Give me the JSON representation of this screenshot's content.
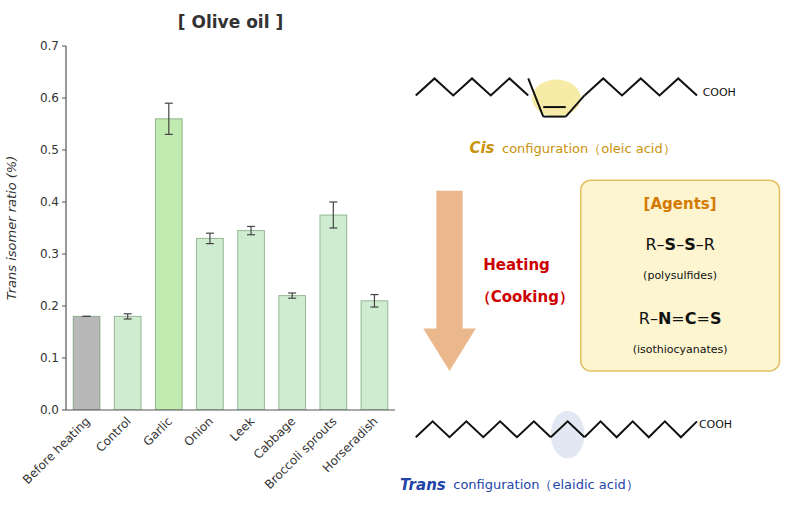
{
  "chart_data": {
    "type": "bar",
    "title": "[ Olive oil ]",
    "ylabel": "Trans isomer ratio (%)",
    "categories": [
      "Before heating",
      "Control",
      "Garlic",
      "Onion",
      "Leek",
      "Cabbage",
      "Broccoli sprouts",
      "Horseradish"
    ],
    "values": [
      0.18,
      0.18,
      0.56,
      0.33,
      0.345,
      0.22,
      0.375,
      0.21
    ],
    "errors": [
      0.0,
      0.005,
      0.03,
      0.01,
      0.008,
      0.005,
      0.025,
      0.012
    ],
    "colors": [
      "#b8b8b8",
      "#d0ecd0",
      "#c0eab0",
      "#d0ecd0",
      "#d0ecd0",
      "#d0ecd0",
      "#d0ecd0",
      "#d0ecd0"
    ],
    "ylim": [
      0,
      0.7
    ],
    "yticks": [
      {
        "value": 0,
        "label": "0.0"
      },
      0.1,
      0.2,
      0.3,
      0.4,
      0.5,
      0.6,
      0.7
    ],
    "grid": false,
    "annotations": [
      {
        "text": "COOH"
      },
      {
        "text": "Cis",
        "color": "#c8920a"
      },
      {
        "text": "configuration（oleic acid）",
        "color": "#c8920a"
      },
      {
        "text": "Heating",
        "color": "#cc0000"
      },
      {
        "text": "（Cooking）",
        "color": "#cc0000"
      },
      {
        "text": "[Agents]",
        "color": "#d47a00"
      },
      {
        "text": "R–S–S–R"
      },
      {
        "text": "(polysulfides)"
      },
      {
        "text": "R–N=C=S"
      },
      {
        "text": "(isothiocyanates)"
      },
      {
        "text": "COOH"
      },
      {
        "text": "Trans",
        "color": "#2244aa"
      },
      {
        "text": "configuration（elaidic acid）",
        "color": "#2244aa"
      }
    ]
  }
}
